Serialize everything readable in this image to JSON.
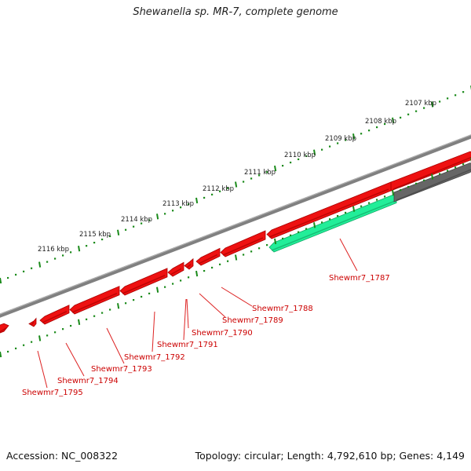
{
  "title": "Shewanella sp. MR-7, complete genome",
  "footer": {
    "accession": "Accession: NC_008322",
    "summary": "Topology: circular; Length: 4,792,610 bp; Genes: 4,149"
  },
  "colors": {
    "cds": "#ee1111",
    "cds_dark": "#aa0000",
    "rna": "#22ee99",
    "backbone": "#808080",
    "tick": "#1a8a1a",
    "label": "#cc0000",
    "leader": "#dd2222"
  },
  "kbp_labels": [
    "2107 kbp",
    "2108 kbp",
    "2109 kbp",
    "2110 kbp",
    "2111 kbp",
    "2112 kbp",
    "2113 kbp",
    "2114 kbp",
    "2115 kbp",
    "2116 kbp"
  ],
  "genes": [
    {
      "label": "Shewmr7_1787"
    },
    {
      "label": "Shewmr7_1788"
    },
    {
      "label": "Shewmr7_1789"
    },
    {
      "label": "Shewmr7_1790"
    },
    {
      "label": "Shewmr7_1791"
    },
    {
      "label": "Shewmr7_1792"
    },
    {
      "label": "Shewmr7_1793"
    },
    {
      "label": "Shewmr7_1794"
    },
    {
      "label": "Shewmr7_1795"
    }
  ]
}
